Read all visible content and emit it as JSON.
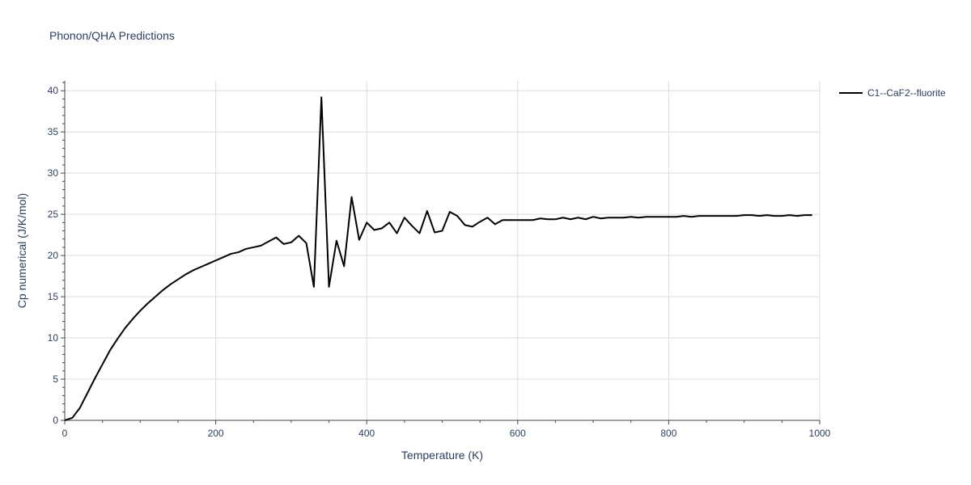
{
  "chart_data": {
    "type": "line",
    "title": "Phonon/QHA Predictions",
    "xlabel": "Temperature (K)",
    "ylabel": "Cp numerical (J/K/mol)",
    "xlim": [
      0,
      1000
    ],
    "ylim": [
      0,
      41.2
    ],
    "xticks": [
      0,
      200,
      400,
      600,
      800,
      1000
    ],
    "yticks": [
      0,
      5,
      10,
      15,
      20,
      25,
      30,
      35,
      40
    ],
    "grid": true,
    "legend_position": "top-right",
    "series": [
      {
        "name": "C1--CaF2--fluorite",
        "color": "#000000",
        "x": [
          0,
          10,
          20,
          30,
          40,
          50,
          60,
          70,
          80,
          90,
          100,
          110,
          120,
          130,
          140,
          150,
          160,
          170,
          180,
          190,
          200,
          210,
          220,
          230,
          240,
          250,
          260,
          270,
          280,
          290,
          300,
          310,
          320,
          330,
          340,
          350,
          360,
          370,
          380,
          390,
          400,
          410,
          420,
          430,
          440,
          450,
          460,
          470,
          480,
          490,
          500,
          510,
          520,
          530,
          540,
          550,
          560,
          570,
          580,
          590,
          600,
          610,
          620,
          630,
          640,
          650,
          660,
          670,
          680,
          690,
          700,
          710,
          720,
          730,
          740,
          750,
          760,
          770,
          780,
          790,
          800,
          810,
          820,
          830,
          840,
          850,
          860,
          870,
          880,
          890,
          900,
          910,
          920,
          930,
          940,
          950,
          960,
          970,
          980,
          990
        ],
        "y": [
          0,
          0.3,
          1.5,
          3.3,
          5.1,
          6.8,
          8.5,
          9.9,
          11.2,
          12.3,
          13.3,
          14.2,
          15.0,
          15.8,
          16.5,
          17.1,
          17.7,
          18.2,
          18.6,
          19.0,
          19.4,
          19.8,
          20.2,
          20.4,
          20.8,
          21.0,
          21.2,
          21.7,
          22.2,
          21.4,
          21.6,
          22.4,
          21.5,
          16.2,
          39.2,
          16.2,
          21.8,
          18.7,
          27.1,
          21.9,
          24.0,
          23.1,
          23.3,
          24.0,
          22.7,
          24.6,
          23.6,
          22.7,
          25.4,
          22.8,
          23.0,
          25.3,
          24.8,
          23.7,
          23.5,
          24.1,
          24.6,
          23.8,
          24.3,
          24.3,
          24.3,
          24.3,
          24.3,
          24.5,
          24.4,
          24.4,
          24.6,
          24.4,
          24.6,
          24.4,
          24.7,
          24.5,
          24.6,
          24.6,
          24.6,
          24.7,
          24.6,
          24.7,
          24.7,
          24.7,
          24.7,
          24.7,
          24.8,
          24.7,
          24.8,
          24.8,
          24.8,
          24.8,
          24.8,
          24.8,
          24.9,
          24.9,
          24.8,
          24.9,
          24.8,
          24.8,
          24.9,
          24.8,
          24.9,
          24.9
        ]
      }
    ]
  }
}
